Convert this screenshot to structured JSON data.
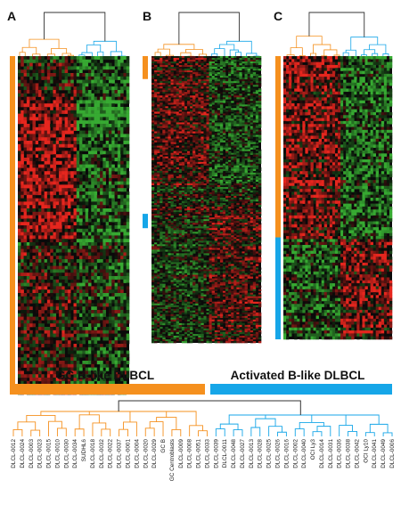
{
  "panels": [
    {
      "letter": "A",
      "left_bar": [
        {
          "color_key": "orange",
          "start": 0.0,
          "end": 1.0
        }
      ]
    },
    {
      "letter": "B",
      "left_bar": [
        {
          "color_key": "orange",
          "start": 0.0,
          "end": 0.08
        },
        {
          "color_key": "blue",
          "start": 0.55,
          "end": 0.6
        }
      ]
    },
    {
      "letter": "C",
      "left_bar": [
        {
          "color_key": "orange",
          "start": 0.0,
          "end": 0.64
        },
        {
          "color_key": "blue",
          "start": 0.64,
          "end": 1.0
        }
      ]
    }
  ],
  "group_labels": {
    "gc": "GC B-like DLBCL",
    "activated": "Activated B-like DLBCL"
  },
  "colors": {
    "orange": "#f5901e",
    "blue": "#16a6e8",
    "heat_red": "#d8261c",
    "heat_green": "#3fa63a",
    "heat_black": "#0a0a0a",
    "dendro_top": "#333333"
  },
  "gc_samples": [
    "DLCL-0012",
    "DLCL-0024",
    "DLCL-0003",
    "DLCL-0023",
    "DLCL-0015",
    "DLCL-0010",
    "DLCL-0030",
    "DLCL-0034",
    "SUDHL6",
    "DLCL-0018",
    "DLCL-0032",
    "DLCL-0022",
    "DLCL-0037",
    "DLCL-0001",
    "DLCL-0004",
    "DLCL-0020",
    "DLCL-0029",
    "GC B",
    "GC Centroblasts",
    "DLCL-0009",
    "DLCL-0008",
    "DLCL-0051",
    "DLCL-0033"
  ],
  "activated_samples": [
    "DLCL-0039",
    "DLCL-0011",
    "DLCL-0048",
    "DLCL-0027",
    "DLCL-0013",
    "DLCL-0028",
    "DLCL-0025",
    "DLCL-0026",
    "DLCL-0016",
    "DLCL-0002",
    "DLCL-0040",
    "OCI Ly3",
    "DLCL-0014",
    "DLCL-0031",
    "DLCL-0036",
    "DLCL-0038",
    "DLCL-0042",
    "OCI Ly10",
    "DLCL-0041",
    "DLCL-0049",
    "DLCL-0006"
  ]
}
